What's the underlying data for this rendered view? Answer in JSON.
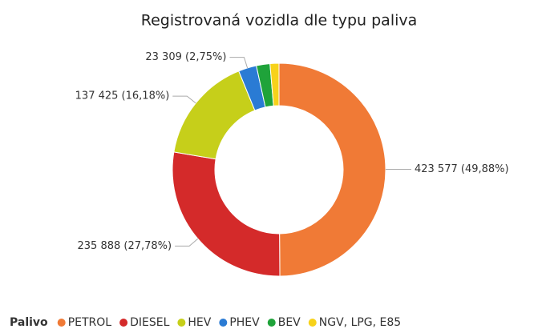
{
  "chart_data": {
    "type": "donut",
    "title": "Registrovaná vozidla dle typu paliva",
    "legend_title": "Palivo",
    "categories": [
      "PETROL",
      "DIESEL",
      "HEV",
      "PHEV",
      "BEV",
      "NGV, LPG, E85"
    ],
    "values": [
      423577,
      235888,
      137425,
      23309,
      17500,
      11500
    ],
    "value_labels": [
      "423 577 (49,88%)",
      "235 888 (27,78%)",
      "137 425 (16,18%)",
      "23 309 (2,75%)",
      null,
      null
    ],
    "colors": [
      "#f07a36",
      "#d42a2a",
      "#c6cf1a",
      "#2a7bd4",
      "#1fa33a",
      "#f7d21a"
    ],
    "legend_position": "bottom"
  }
}
